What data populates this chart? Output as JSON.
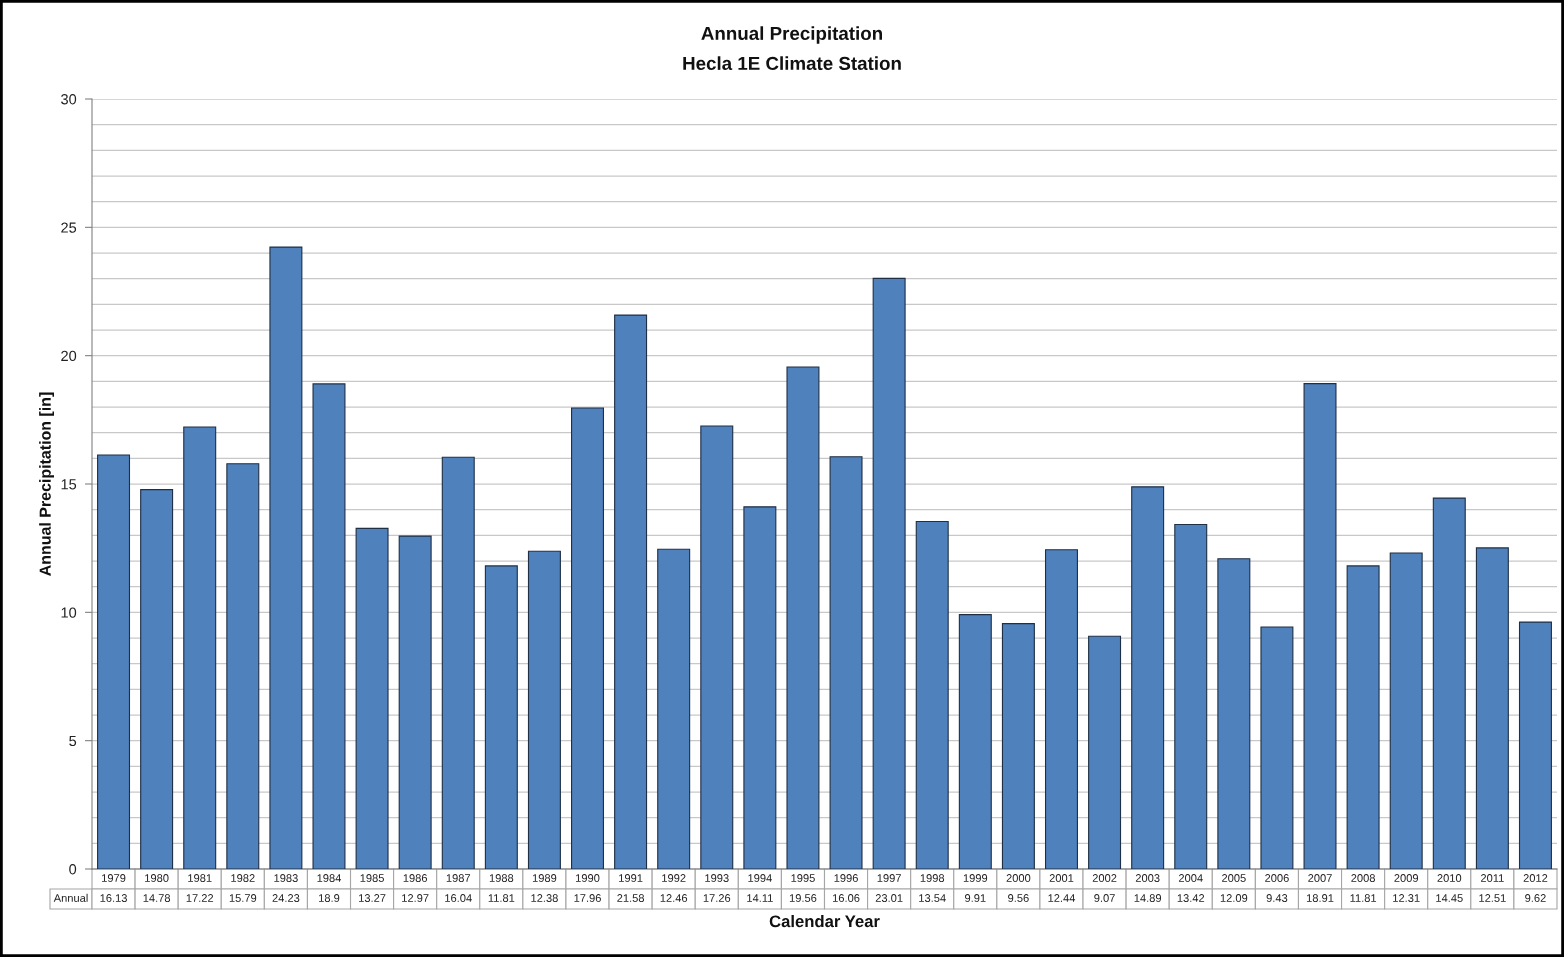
{
  "chart_data": {
    "type": "bar",
    "title": "Annual Precipitation",
    "subtitle": "Hecla 1E Climate Station",
    "xlabel": "Calendar Year",
    "ylabel": "Annual Precipitation [in]",
    "categories": [
      "1979",
      "1980",
      "1981",
      "1982",
      "1983",
      "1984",
      "1985",
      "1986",
      "1987",
      "1988",
      "1989",
      "1990",
      "1991",
      "1992",
      "1993",
      "1994",
      "1995",
      "1996",
      "1997",
      "1998",
      "1999",
      "2000",
      "2001",
      "2002",
      "2003",
      "2004",
      "2005",
      "2006",
      "2007",
      "2008",
      "2009",
      "2010",
      "2011",
      "2012"
    ],
    "series": [
      {
        "name": "Annual",
        "color": "#4f81bd",
        "values": [
          16.13,
          14.78,
          17.22,
          15.79,
          24.23,
          18.9,
          13.27,
          12.97,
          16.04,
          11.81,
          12.38,
          17.96,
          21.58,
          12.46,
          17.26,
          14.11,
          19.56,
          16.06,
          23.01,
          13.54,
          9.91,
          9.56,
          12.44,
          9.07,
          14.89,
          13.42,
          12.09,
          9.43,
          18.91,
          11.81,
          12.31,
          14.45,
          12.51,
          9.62
        ]
      }
    ],
    "ylim": [
      0,
      30
    ],
    "yticks": [
      0,
      {
        "value": 1,
        "label": null
      },
      {
        "value": 2,
        "label": null
      },
      {
        "value": 3,
        "label": null
      },
      {
        "value": 4,
        "label": null
      },
      5,
      {
        "value": 6,
        "label": null
      },
      {
        "value": 7,
        "label": null
      },
      {
        "value": 8,
        "label": null
      },
      {
        "value": 9,
        "label": null
      },
      10,
      {
        "value": 11,
        "label": null
      },
      {
        "value": 12,
        "label": null
      },
      {
        "value": 13,
        "label": null
      },
      {
        "value": 14,
        "label": null
      },
      15,
      {
        "value": 16,
        "label": null
      },
      {
        "value": 17,
        "label": null
      },
      {
        "value": 18,
        "label": null
      },
      {
        "value": 19,
        "label": null
      },
      20,
      {
        "value": 21,
        "label": null
      },
      {
        "value": 22,
        "label": null
      },
      {
        "value": 23,
        "label": null
      },
      {
        "value": 24,
        "label": null
      },
      25,
      {
        "value": 26,
        "label": null
      },
      {
        "value": 27,
        "label": null
      },
      {
        "value": 28,
        "label": null
      },
      {
        "value": 29,
        "label": null
      },
      30
    ],
    "grid": "y",
    "data_labels": true
  }
}
